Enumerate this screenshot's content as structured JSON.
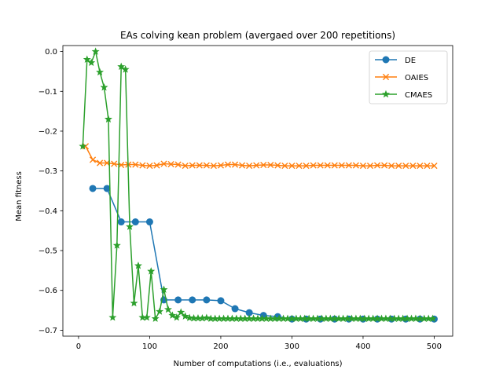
{
  "chart_data": {
    "type": "line",
    "title": "EAs colving kean problem (avergaed over 200 repetitions)",
    "xlabel": "Number of computations (i.e., evaluations)",
    "ylabel": "Mean fitness",
    "xlim": [
      -22,
      526
    ],
    "ylim": [
      -0.715,
      0.015
    ],
    "xticks": [
      0,
      100,
      200,
      300,
      400,
      500
    ],
    "yticks": [
      0.0,
      -0.1,
      -0.2,
      -0.3,
      -0.4,
      -0.5,
      -0.6,
      -0.7
    ],
    "xtick_labels": [
      "0",
      "100",
      "200",
      "300",
      "400",
      "500"
    ],
    "ytick_labels": [
      "0.0",
      "−0.1",
      "−0.2",
      "−0.3",
      "−0.4",
      "−0.5",
      "−0.6",
      "−0.7"
    ],
    "grid": false,
    "legend_position": "top-right",
    "series": [
      {
        "name": "DE",
        "color": "#1f77b4",
        "marker": "circle",
        "x": [
          20,
          40,
          60,
          80,
          100,
          120,
          140,
          160,
          180,
          200,
          220,
          240,
          260,
          280,
          300,
          320,
          340,
          360,
          380,
          400,
          420,
          440,
          460,
          480,
          500
        ],
        "y": [
          -0.344,
          -0.344,
          -0.428,
          -0.428,
          -0.428,
          -0.624,
          -0.624,
          -0.624,
          -0.624,
          -0.626,
          -0.646,
          -0.656,
          -0.663,
          -0.666,
          -0.672,
          -0.672,
          -0.672,
          -0.672,
          -0.672,
          -0.672,
          -0.672,
          -0.672,
          -0.672,
          -0.672,
          -0.672
        ]
      },
      {
        "name": "OAIES",
        "color": "#ff7f0e",
        "marker": "x",
        "x": [
          10,
          20,
          30,
          40,
          50,
          60,
          70,
          80,
          90,
          100,
          110,
          120,
          130,
          140,
          150,
          160,
          170,
          180,
          190,
          200,
          210,
          220,
          230,
          240,
          250,
          260,
          270,
          280,
          290,
          300,
          310,
          320,
          330,
          340,
          350,
          360,
          370,
          380,
          390,
          400,
          410,
          420,
          430,
          440,
          450,
          460,
          470,
          480,
          490,
          500
        ],
        "y": [
          -0.238,
          -0.272,
          -0.28,
          -0.28,
          -0.282,
          -0.285,
          -0.284,
          -0.284,
          -0.286,
          -0.287,
          -0.286,
          -0.282,
          -0.283,
          -0.284,
          -0.287,
          -0.286,
          -0.286,
          -0.286,
          -0.287,
          -0.286,
          -0.284,
          -0.284,
          -0.286,
          -0.287,
          -0.286,
          -0.285,
          -0.285,
          -0.286,
          -0.287,
          -0.287,
          -0.287,
          -0.287,
          -0.286,
          -0.286,
          -0.286,
          -0.286,
          -0.286,
          -0.286,
          -0.286,
          -0.287,
          -0.287,
          -0.286,
          -0.286,
          -0.287,
          -0.287,
          -0.287,
          -0.287,
          -0.287,
          -0.287,
          -0.287
        ]
      },
      {
        "name": "CMAES",
        "color": "#2ca02c",
        "marker": "star",
        "x": [
          6,
          12,
          18,
          24,
          30,
          36,
          42,
          48,
          54,
          60,
          66,
          72,
          78,
          84,
          90,
          96,
          102,
          108,
          114,
          120,
          126,
          132,
          138,
          144,
          150,
          156,
          162,
          168,
          174,
          180,
          186,
          192,
          198,
          204,
          210,
          216,
          222,
          228,
          234,
          240,
          246,
          252,
          258,
          264,
          270,
          276,
          282,
          288,
          294,
          300,
          306,
          312,
          318,
          324,
          330,
          336,
          342,
          348,
          354,
          360,
          366,
          372,
          378,
          384,
          390,
          396,
          402,
          408,
          414,
          420,
          426,
          432,
          438,
          444,
          450,
          456,
          462,
          468,
          474,
          480,
          486,
          492,
          498
        ],
        "y": [
          -0.238,
          -0.02,
          -0.028,
          0.0,
          -0.052,
          -0.09,
          -0.17,
          -0.668,
          -0.487,
          -0.038,
          -0.045,
          -0.44,
          -0.632,
          -0.538,
          -0.668,
          -0.668,
          -0.552,
          -0.671,
          -0.653,
          -0.598,
          -0.648,
          -0.663,
          -0.668,
          -0.655,
          -0.665,
          -0.669,
          -0.67,
          -0.67,
          -0.67,
          -0.669,
          -0.671,
          -0.671,
          -0.671,
          -0.671,
          -0.671,
          -0.671,
          -0.671,
          -0.671,
          -0.671,
          -0.671,
          -0.671,
          -0.671,
          -0.671,
          -0.671,
          -0.671,
          -0.671,
          -0.671,
          -0.671,
          -0.671,
          -0.671,
          -0.671,
          -0.671,
          -0.671,
          -0.671,
          -0.671,
          -0.671,
          -0.671,
          -0.671,
          -0.671,
          -0.671,
          -0.671,
          -0.671,
          -0.671,
          -0.671,
          -0.671,
          -0.671,
          -0.671,
          -0.671,
          -0.671,
          -0.671,
          -0.671,
          -0.671,
          -0.671,
          -0.671,
          -0.671,
          -0.671,
          -0.671,
          -0.671,
          -0.671,
          -0.671,
          -0.671,
          -0.671,
          -0.671
        ]
      }
    ]
  }
}
